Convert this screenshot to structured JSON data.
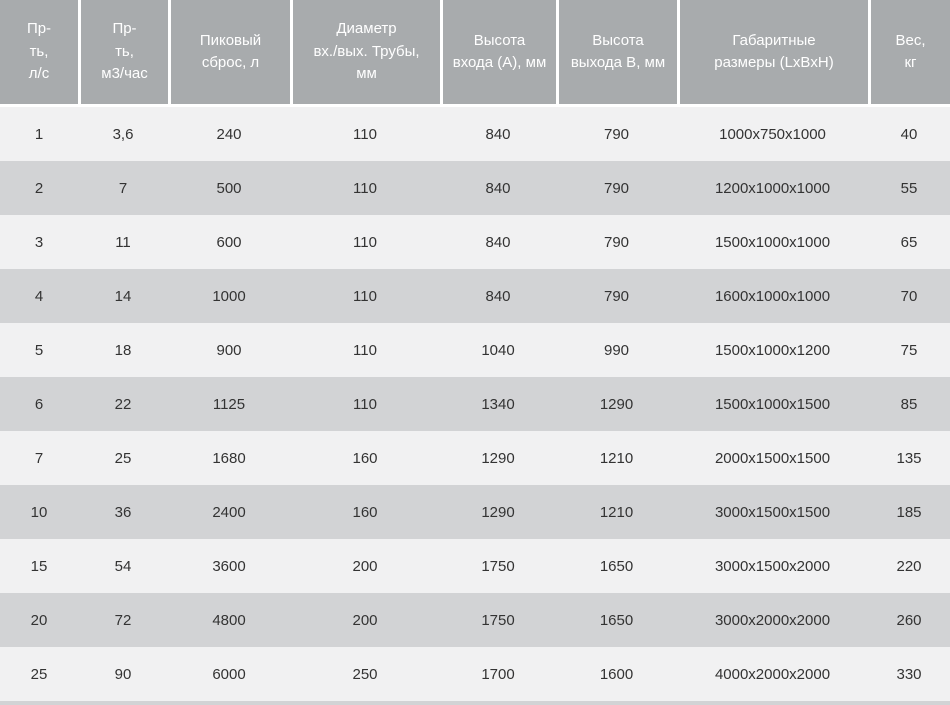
{
  "table": {
    "columns": [
      {
        "id": "productivity-ls",
        "label": "Пр-\nть,\nл/с"
      },
      {
        "id": "productivity-m3h",
        "label": "Пр-\nть,\nм3/час"
      },
      {
        "id": "peak-discharge",
        "label": "Пиковый\nсброс, л"
      },
      {
        "id": "pipe-diameter",
        "label": "Диаметр\nвх./вых. Трубы,\nмм"
      },
      {
        "id": "inlet-height",
        "label": "Высота\nвхода (А), мм"
      },
      {
        "id": "outlet-height",
        "label": "Высота\nвыхода В, мм"
      },
      {
        "id": "overall-dimensions",
        "label": "Габаритные\nразмеры (LxBxH)"
      },
      {
        "id": "weight",
        "label": "Вес,\nкг"
      }
    ],
    "rows": [
      [
        "1",
        "3,6",
        "240",
        "110",
        "840",
        "790",
        "1000x750x1000",
        "40"
      ],
      [
        "2",
        "7",
        "500",
        "110",
        "840",
        "790",
        "1200x1000x1000",
        "55"
      ],
      [
        "3",
        "11",
        "600",
        "110",
        "840",
        "790",
        "1500x1000x1000",
        "65"
      ],
      [
        "4",
        "14",
        "1000",
        "110",
        "840",
        "790",
        "1600x1000x1000",
        "70"
      ],
      [
        "5",
        "18",
        "900",
        "110",
        "1040",
        "990",
        "1500x1000x1200",
        "75"
      ],
      [
        "6",
        "22",
        "1125",
        "110",
        "1340",
        "1290",
        "1500x1000x1500",
        "85"
      ],
      [
        "7",
        "25",
        "1680",
        "160",
        "1290",
        "1210",
        "2000x1500x1500",
        "135"
      ],
      [
        "10",
        "36",
        "2400",
        "160",
        "1290",
        "1210",
        "3000x1500x1500",
        "185"
      ],
      [
        "15",
        "54",
        "3600",
        "200",
        "1750",
        "1650",
        "3000x1500x2000",
        "220"
      ],
      [
        "20",
        "72",
        "4800",
        "200",
        "1750",
        "1650",
        "3000x2000x2000",
        "260"
      ],
      [
        "25",
        "90",
        "6000",
        "250",
        "1700",
        "1600",
        "4000x2000x2000",
        "330"
      ]
    ]
  },
  "colors": {
    "header_bg": "#a8abad",
    "header_text": "#ffffff",
    "row_odd_bg": "#f1f1f2",
    "row_even_bg": "#d2d3d5",
    "cell_text": "#333333",
    "separator": "#ffffff"
  }
}
